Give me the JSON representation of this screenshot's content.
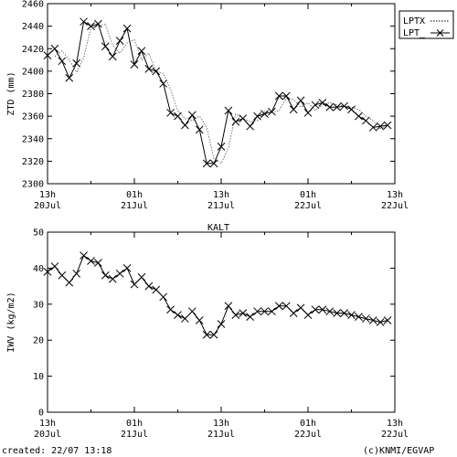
{
  "station_label": "KALT",
  "footer": {
    "created": "created: 22/07 13:18",
    "credit": "(c)KNMI/EGVAP"
  },
  "chart_data": [
    {
      "type": "line",
      "ylabel": "ZTD (mm)",
      "ylim": [
        2300,
        2460
      ],
      "yticks": [
        2300,
        2320,
        2340,
        2360,
        2380,
        2400,
        2420,
        2440,
        2460
      ],
      "xlim": [
        0,
        48
      ],
      "xticks": [
        {
          "x": 0,
          "top": "13h",
          "bottom": "20Jul"
        },
        {
          "x": 12,
          "top": "01h",
          "bottom": "21Jul"
        },
        {
          "x": 24,
          "top": "13h",
          "bottom": "21Jul"
        },
        {
          "x": 36,
          "top": "01h",
          "bottom": "22Jul"
        },
        {
          "x": 48,
          "top": "13h",
          "bottom": "22Jul"
        }
      ],
      "legend": "top-right outside",
      "series": [
        {
          "name": "LPTX",
          "style": "dotted",
          "x": [
            1,
            2,
            3,
            4,
            5,
            6,
            7,
            8,
            9,
            10,
            11,
            12,
            13,
            14,
            15,
            16,
            17,
            18,
            19,
            20,
            21,
            22,
            23,
            24,
            25,
            26,
            27,
            28,
            29,
            30,
            31,
            32,
            33,
            34,
            35,
            36,
            37,
            38,
            39,
            40,
            41,
            42,
            43,
            44,
            45,
            46,
            47
          ],
          "values": [
            2413,
            2418,
            2410,
            2399,
            2412,
            2439,
            2440,
            2442,
            2423,
            2416,
            2425,
            2428,
            2410,
            2416,
            2400,
            2398,
            2384,
            2365,
            2358,
            2356,
            2360,
            2350,
            2322,
            2318,
            2332,
            2362,
            2358,
            2355,
            2356,
            2364,
            2363,
            2365,
            2376,
            2375,
            2368,
            2372,
            2365,
            2370,
            2372,
            2370,
            2369,
            2368,
            2366,
            2360,
            2356,
            2349,
            2351
          ]
        },
        {
          "name": "LPT_",
          "style": "solid-x",
          "x": [
            0,
            1,
            2,
            3,
            4,
            5,
            6,
            7,
            8,
            9,
            10,
            11,
            12,
            13,
            14,
            15,
            16,
            17,
            18,
            19,
            20,
            21,
            22,
            23,
            24,
            25,
            26,
            27,
            28,
            29,
            30,
            31,
            32,
            33,
            34,
            35,
            36,
            37,
            38,
            39,
            40,
            41,
            42,
            43,
            44,
            45,
            46,
            47
          ],
          "values": [
            2414,
            2420,
            2409,
            2394,
            2407,
            2444,
            2440,
            2442,
            2422,
            2413,
            2427,
            2438,
            2406,
            2418,
            2402,
            2400,
            2389,
            2363,
            2360,
            2352,
            2361,
            2348,
            2318,
            2318,
            2333,
            2365,
            2355,
            2358,
            2351,
            2360,
            2362,
            2364,
            2378,
            2378,
            2366,
            2374,
            2363,
            2370,
            2372,
            2368,
            2368,
            2369,
            2366,
            2360,
            2356,
            2350,
            2351,
            2352
          ]
        }
      ]
    },
    {
      "type": "line",
      "ylabel": "IWV (kg/m2)",
      "ylim": [
        0,
        50
      ],
      "yticks": [
        0,
        10,
        20,
        30,
        40,
        50
      ],
      "xlim": [
        0,
        48
      ],
      "xticks": [
        {
          "x": 0,
          "top": "13h",
          "bottom": "20Jul"
        },
        {
          "x": 12,
          "top": "01h",
          "bottom": "21Jul"
        },
        {
          "x": 24,
          "top": "13h",
          "bottom": "21Jul"
        },
        {
          "x": 36,
          "top": "01h",
          "bottom": "22Jul"
        },
        {
          "x": 48,
          "top": "13h",
          "bottom": "22Jul"
        }
      ],
      "series": [
        {
          "name": "",
          "style": "solid-x",
          "x": [
            0,
            1,
            2,
            3,
            4,
            5,
            6,
            7,
            8,
            9,
            10,
            11,
            12,
            13,
            14,
            15,
            16,
            17,
            18,
            19,
            20,
            21,
            22,
            23,
            24,
            25,
            26,
            27,
            28,
            29,
            30,
            31,
            32,
            33,
            34,
            35,
            36,
            37,
            38,
            39,
            40,
            41,
            42,
            43,
            44,
            45,
            46,
            47
          ],
          "values": [
            39.0,
            40.5,
            38.0,
            36.0,
            38.5,
            43.5,
            42.0,
            41.5,
            38.0,
            37.0,
            38.5,
            40.0,
            35.5,
            37.5,
            35.0,
            34.0,
            32.0,
            28.5,
            27.0,
            26.0,
            28.0,
            25.5,
            21.5,
            21.5,
            24.5,
            29.5,
            27.0,
            27.5,
            26.5,
            28.0,
            28.0,
            28.0,
            29.5,
            29.5,
            27.5,
            29.0,
            27.0,
            28.5,
            28.5,
            28.0,
            27.5,
            27.5,
            27.0,
            26.5,
            26.0,
            25.5,
            25.0,
            25.5
          ]
        }
      ]
    }
  ]
}
